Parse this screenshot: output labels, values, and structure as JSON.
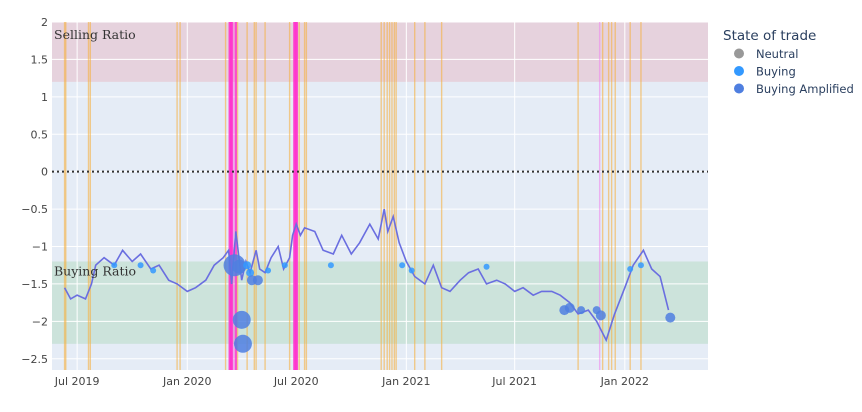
{
  "chart_data": {
    "type": "line",
    "title": "",
    "xlabel": "",
    "ylabel": "",
    "ylim": [
      -2.65,
      2
    ],
    "xlim": [
      "2019-05-20",
      "2022-05-20"
    ],
    "x_ticks": [
      {
        "date": "2019-07-01",
        "label": "Jul 2019"
      },
      {
        "date": "2020-01-01",
        "label": "Jan 2020"
      },
      {
        "date": "2020-07-01",
        "label": "Jul 2020"
      },
      {
        "date": "2021-01-01",
        "label": "Jan 2021"
      },
      {
        "date": "2021-07-01",
        "label": "Jul 2021"
      },
      {
        "date": "2022-01-01",
        "label": "Jan 2022"
      }
    ],
    "y_ticks": [
      {
        "value": 2,
        "label": "2"
      },
      {
        "value": 1.5,
        "label": "1.5"
      },
      {
        "value": 1,
        "label": "1"
      },
      {
        "value": 0.5,
        "label": "0.5"
      },
      {
        "value": 0,
        "label": "0"
      },
      {
        "value": -0.5,
        "label": "−0.5"
      },
      {
        "value": -1,
        "label": "−1"
      },
      {
        "value": -1.5,
        "label": "−1.5"
      },
      {
        "value": -2,
        "label": "−2"
      },
      {
        "value": -2.5,
        "label": "−2.5"
      }
    ],
    "reference_line": {
      "y": 0,
      "style": "dotted"
    },
    "bands": [
      {
        "label": "Selling Ratio",
        "from": 1.2,
        "to": 2,
        "color": "#e6b3bf"
      },
      {
        "label": "Buying Ratio",
        "from": -2.3,
        "to": -1.2,
        "color": "#b3d9bf"
      }
    ],
    "event_lines": [
      {
        "date": "2019-06-10",
        "color": "#f5b041"
      },
      {
        "date": "2019-06-12",
        "color": "#f5b041"
      },
      {
        "date": "2019-07-20",
        "color": "#f5b041"
      },
      {
        "date": "2019-07-23",
        "color": "#f5b041"
      },
      {
        "date": "2019-12-15",
        "color": "#f5b041"
      },
      {
        "date": "2019-12-20",
        "color": "#f5b041"
      },
      {
        "date": "2020-03-05",
        "color": "#f5b041"
      },
      {
        "date": "2020-03-12",
        "color": "#ff33cc"
      },
      {
        "date": "2020-03-14",
        "color": "#ff33cc"
      },
      {
        "date": "2020-03-16",
        "color": "#ff33cc"
      },
      {
        "date": "2020-03-22",
        "color": "#ff33cc"
      },
      {
        "date": "2020-03-25",
        "color": "#f5b041"
      },
      {
        "date": "2020-04-10",
        "color": "#f5b041"
      },
      {
        "date": "2020-04-22",
        "color": "#f5b041"
      },
      {
        "date": "2020-04-25",
        "color": "#f5b041"
      },
      {
        "date": "2020-05-10",
        "color": "#f5b041"
      },
      {
        "date": "2020-06-20",
        "color": "#f5b041"
      },
      {
        "date": "2020-06-28",
        "color": "#ff33cc"
      },
      {
        "date": "2020-06-30",
        "color": "#ff33cc"
      },
      {
        "date": "2020-07-02",
        "color": "#ff33cc"
      },
      {
        "date": "2020-07-06",
        "color": "#f5b041"
      },
      {
        "date": "2020-07-15",
        "color": "#f5b041"
      },
      {
        "date": "2020-07-18",
        "color": "#f5b041"
      },
      {
        "date": "2020-11-20",
        "color": "#f5b041"
      },
      {
        "date": "2020-11-25",
        "color": "#f5b041"
      },
      {
        "date": "2020-11-30",
        "color": "#f5b041"
      },
      {
        "date": "2020-12-04",
        "color": "#f5b041"
      },
      {
        "date": "2020-12-08",
        "color": "#f5b041"
      },
      {
        "date": "2020-12-12",
        "color": "#f5b041"
      },
      {
        "date": "2020-12-15",
        "color": "#f5b041"
      },
      {
        "date": "2021-01-15",
        "color": "#f5b041"
      },
      {
        "date": "2021-02-01",
        "color": "#f5b041"
      },
      {
        "date": "2021-03-01",
        "color": "#f5b041"
      },
      {
        "date": "2021-10-15",
        "color": "#f5b041"
      },
      {
        "date": "2021-11-20",
        "color": "#ee88ee"
      },
      {
        "date": "2021-11-25",
        "color": "#f5b041"
      },
      {
        "date": "2021-12-05",
        "color": "#f5b041"
      },
      {
        "date": "2021-12-10",
        "color": "#f5b041"
      },
      {
        "date": "2021-12-16",
        "color": "#f5b041"
      },
      {
        "date": "2022-01-10",
        "color": "#f5b041"
      },
      {
        "date": "2022-01-28",
        "color": "#f5b041"
      }
    ],
    "line": {
      "color": "#6a6ee0",
      "x": [
        "2019-06-10",
        "2019-06-20",
        "2019-07-01",
        "2019-07-15",
        "2019-07-25",
        "2019-08-01",
        "2019-08-15",
        "2019-09-01",
        "2019-09-15",
        "2019-10-01",
        "2019-10-15",
        "2019-11-01",
        "2019-11-15",
        "2019-12-01",
        "2019-12-15",
        "2020-01-01",
        "2020-01-15",
        "2020-02-01",
        "2020-02-15",
        "2020-03-01",
        "2020-03-10",
        "2020-03-15",
        "2020-03-22",
        "2020-04-01",
        "2020-04-08",
        "2020-04-15",
        "2020-04-25",
        "2020-05-01",
        "2020-05-10",
        "2020-05-20",
        "2020-06-01",
        "2020-06-10",
        "2020-06-20",
        "2020-06-25",
        "2020-07-01",
        "2020-07-08",
        "2020-07-15",
        "2020-08-01",
        "2020-08-15",
        "2020-09-01",
        "2020-09-15",
        "2020-10-01",
        "2020-10-15",
        "2020-11-01",
        "2020-11-15",
        "2020-11-25",
        "2020-12-01",
        "2020-12-10",
        "2020-12-20",
        "2021-01-01",
        "2021-01-15",
        "2021-02-01",
        "2021-02-15",
        "2021-03-01",
        "2021-03-15",
        "2021-04-01",
        "2021-04-15",
        "2021-05-01",
        "2021-05-15",
        "2021-06-01",
        "2021-06-15",
        "2021-07-01",
        "2021-07-15",
        "2021-08-01",
        "2021-08-15",
        "2021-09-01",
        "2021-09-15",
        "2021-10-01",
        "2021-10-15",
        "2021-11-01",
        "2021-11-15",
        "2021-12-01",
        "2021-12-15",
        "2022-01-01",
        "2022-01-15",
        "2022-02-01",
        "2022-02-15",
        "2022-03-01",
        "2022-03-15"
      ],
      "y": [
        -1.55,
        -1.7,
        -1.65,
        -1.7,
        -1.5,
        -1.25,
        -1.15,
        -1.25,
        -1.05,
        -1.2,
        -1.1,
        -1.3,
        -1.25,
        -1.45,
        -1.5,
        -1.6,
        -1.55,
        -1.45,
        -1.25,
        -1.15,
        -1.05,
        -1.5,
        -0.8,
        -1.45,
        -1.2,
        -1.35,
        -1.05,
        -1.3,
        -1.35,
        -1.15,
        -1.0,
        -1.3,
        -1.15,
        -0.85,
        -0.7,
        -0.85,
        -0.75,
        -0.8,
        -1.05,
        -1.1,
        -0.85,
        -1.1,
        -0.95,
        -0.7,
        -0.9,
        -0.5,
        -0.8,
        -0.6,
        -0.95,
        -1.2,
        -1.4,
        -1.5,
        -1.25,
        -1.55,
        -1.6,
        -1.45,
        -1.35,
        -1.3,
        -1.5,
        -1.45,
        -1.5,
        -1.6,
        -1.55,
        -1.65,
        -1.6,
        -1.6,
        -1.65,
        -1.75,
        -1.9,
        -1.85,
        -2.0,
        -2.25,
        -1.9,
        -1.55,
        -1.25,
        -1.05,
        -1.3,
        -1.4,
        -1.85
      ]
    },
    "legend": {
      "title": "State of trade",
      "position": "right",
      "items": [
        {
          "label": "Neutral",
          "color": "#999999"
        },
        {
          "label": "Buying",
          "color": "#3399ff"
        },
        {
          "label": "Buying Amplified",
          "color": "#4f7fe0"
        }
      ]
    },
    "markers": [
      {
        "date": "2019-09-01",
        "y": -1.25,
        "state": "Buying",
        "size": 6
      },
      {
        "date": "2019-10-15",
        "y": -1.25,
        "state": "Buying",
        "size": 6
      },
      {
        "date": "2019-11-05",
        "y": -1.32,
        "state": "Buying",
        "size": 6
      },
      {
        "date": "2020-03-20",
        "y": -1.25,
        "state": "Buying Amplified",
        "size": 22
      },
      {
        "date": "2020-03-28",
        "y": -1.27,
        "state": "Buying Amplified",
        "size": 14
      },
      {
        "date": "2020-04-01",
        "y": -1.98,
        "state": "Buying Amplified",
        "size": 18
      },
      {
        "date": "2020-04-03",
        "y": -2.3,
        "state": "Buying Amplified",
        "size": 18
      },
      {
        "date": "2020-04-10",
        "y": -1.25,
        "state": "Buying",
        "size": 8
      },
      {
        "date": "2020-04-15",
        "y": -1.35,
        "state": "Buying",
        "size": 8
      },
      {
        "date": "2020-04-18",
        "y": -1.45,
        "state": "Buying Amplified",
        "size": 10
      },
      {
        "date": "2020-04-28",
        "y": -1.45,
        "state": "Buying Amplified",
        "size": 10
      },
      {
        "date": "2020-05-15",
        "y": -1.32,
        "state": "Buying",
        "size": 6
      },
      {
        "date": "2020-06-12",
        "y": -1.25,
        "state": "Buying",
        "size": 6
      },
      {
        "date": "2020-08-28",
        "y": -1.25,
        "state": "Buying",
        "size": 6
      },
      {
        "date": "2020-12-25",
        "y": -1.25,
        "state": "Buying",
        "size": 6
      },
      {
        "date": "2021-01-10",
        "y": -1.32,
        "state": "Buying",
        "size": 6
      },
      {
        "date": "2021-05-15",
        "y": -1.27,
        "state": "Buying",
        "size": 6
      },
      {
        "date": "2021-09-22",
        "y": -1.85,
        "state": "Buying Amplified",
        "size": 10
      },
      {
        "date": "2021-10-01",
        "y": -1.82,
        "state": "Buying Amplified",
        "size": 10
      },
      {
        "date": "2021-10-20",
        "y": -1.85,
        "state": "Buying Amplified",
        "size": 8
      },
      {
        "date": "2021-11-15",
        "y": -1.85,
        "state": "Buying Amplified",
        "size": 8
      },
      {
        "date": "2021-11-22",
        "y": -1.92,
        "state": "Buying Amplified",
        "size": 10
      },
      {
        "date": "2022-01-10",
        "y": -1.3,
        "state": "Buying",
        "size": 6
      },
      {
        "date": "2022-01-28",
        "y": -1.25,
        "state": "Buying",
        "size": 6
      },
      {
        "date": "2022-03-18",
        "y": -1.95,
        "state": "Buying Amplified",
        "size": 10
      }
    ]
  }
}
